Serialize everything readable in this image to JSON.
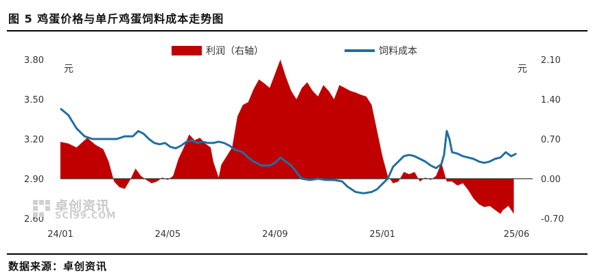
{
  "header": {
    "title": "图 5  鸡蛋价格与单斤鸡蛋饲料成本走势图"
  },
  "footer": {
    "source": "数据来源：卓创资讯"
  },
  "watermark": {
    "cn": "卓创资讯",
    "en": "SCI99.COM"
  },
  "colors": {
    "profit": "#c00000",
    "feed": "#1f6f9e"
  },
  "chart_data": {
    "type": "area",
    "legend_position": "top-center",
    "grid": false,
    "legend": [
      "利润（右轴）",
      "饲料成本"
    ],
    "left_unit": "元",
    "right_unit": "元",
    "left_axis": {
      "min": 2.6,
      "max": 3.8,
      "ticks": [
        "3.80",
        "3.50",
        "3.20",
        "2.90",
        "2.60"
      ]
    },
    "right_axis": {
      "min": -0.7,
      "max": 2.1,
      "ticks": [
        "2.10",
        "1.40",
        "0.70",
        "0.00",
        "-0.70"
      ]
    },
    "x_ticks": [
      "24/01",
      "24/05",
      "24/09",
      "25/01",
      "25/06"
    ],
    "x_tick_months": [
      0,
      4,
      8,
      12,
      17
    ],
    "x_range_months": [
      0,
      17.6
    ],
    "series": [
      {
        "name": "利润（右轴）",
        "axis": "right",
        "kind": "area",
        "points": [
          [
            0,
            0.65
          ],
          [
            0.3,
            0.62
          ],
          [
            0.6,
            0.55
          ],
          [
            1.0,
            0.72
          ],
          [
            1.3,
            0.6
          ],
          [
            1.6,
            0.52
          ],
          [
            1.8,
            0.3
          ],
          [
            2.0,
            -0.05
          ],
          [
            2.2,
            -0.15
          ],
          [
            2.4,
            -0.18
          ],
          [
            2.6,
            -0.02
          ],
          [
            2.8,
            0.18
          ],
          [
            3.0,
            0.05
          ],
          [
            3.2,
            -0.02
          ],
          [
            3.4,
            -0.08
          ],
          [
            3.6,
            -0.05
          ],
          [
            3.8,
            0.02
          ],
          [
            4.0,
            -0.02
          ],
          [
            4.2,
            0.05
          ],
          [
            4.4,
            0.35
          ],
          [
            4.6,
            0.55
          ],
          [
            4.8,
            0.78
          ],
          [
            5.0,
            0.68
          ],
          [
            5.2,
            0.72
          ],
          [
            5.4,
            0.62
          ],
          [
            5.6,
            0.55
          ],
          [
            5.7,
            0.3
          ],
          [
            5.9,
            0.02
          ],
          [
            6.0,
            0.25
          ],
          [
            6.2,
            0.4
          ],
          [
            6.4,
            0.55
          ],
          [
            6.6,
            1.1
          ],
          [
            6.8,
            1.3
          ],
          [
            7.0,
            1.35
          ],
          [
            7.2,
            1.58
          ],
          [
            7.4,
            1.75
          ],
          [
            7.6,
            1.68
          ],
          [
            7.8,
            1.6
          ],
          [
            8.0,
            1.85
          ],
          [
            8.2,
            2.1
          ],
          [
            8.4,
            1.8
          ],
          [
            8.6,
            1.55
          ],
          [
            8.8,
            1.4
          ],
          [
            9.0,
            1.6
          ],
          [
            9.2,
            1.7
          ],
          [
            9.4,
            1.55
          ],
          [
            9.6,
            1.45
          ],
          [
            9.8,
            1.65
          ],
          [
            10.0,
            1.55
          ],
          [
            10.2,
            1.4
          ],
          [
            10.4,
            1.65
          ],
          [
            10.6,
            1.6
          ],
          [
            10.8,
            1.55
          ],
          [
            11.0,
            1.52
          ],
          [
            11.2,
            1.48
          ],
          [
            11.4,
            1.45
          ],
          [
            11.6,
            1.3
          ],
          [
            11.8,
            0.85
          ],
          [
            12.0,
            0.4
          ],
          [
            12.2,
            0.05
          ],
          [
            12.4,
            -0.08
          ],
          [
            12.6,
            -0.05
          ],
          [
            12.8,
            0.12
          ],
          [
            13.0,
            0.08
          ],
          [
            13.2,
            0.12
          ],
          [
            13.4,
            -0.05
          ],
          [
            13.6,
            0.02
          ],
          [
            13.8,
            -0.02
          ],
          [
            14.0,
            0.05
          ],
          [
            14.2,
            0.28
          ],
          [
            14.4,
            -0.05
          ],
          [
            14.6,
            -0.05
          ],
          [
            14.8,
            -0.12
          ],
          [
            15.0,
            -0.08
          ],
          [
            15.2,
            -0.2
          ],
          [
            15.4,
            -0.35
          ],
          [
            15.6,
            -0.45
          ],
          [
            15.8,
            -0.5
          ],
          [
            16.0,
            -0.48
          ],
          [
            16.2,
            -0.55
          ],
          [
            16.4,
            -0.62
          ],
          [
            16.5,
            -0.55
          ],
          [
            16.7,
            -0.48
          ],
          [
            16.9,
            -0.62
          ]
        ]
      },
      {
        "name": "饲料成本",
        "axis": "left",
        "kind": "line",
        "points": [
          [
            0,
            3.43
          ],
          [
            0.3,
            3.38
          ],
          [
            0.6,
            3.28
          ],
          [
            0.9,
            3.22
          ],
          [
            1.2,
            3.2
          ],
          [
            1.5,
            3.2
          ],
          [
            1.8,
            3.2
          ],
          [
            2.1,
            3.2
          ],
          [
            2.4,
            3.22
          ],
          [
            2.7,
            3.22
          ],
          [
            2.9,
            3.26
          ],
          [
            3.1,
            3.24
          ],
          [
            3.3,
            3.2
          ],
          [
            3.5,
            3.17
          ],
          [
            3.7,
            3.16
          ],
          [
            3.9,
            3.17
          ],
          [
            4.1,
            3.14
          ],
          [
            4.3,
            3.13
          ],
          [
            4.5,
            3.15
          ],
          [
            4.7,
            3.18
          ],
          [
            4.9,
            3.19
          ],
          [
            5.1,
            3.17
          ],
          [
            5.3,
            3.18
          ],
          [
            5.5,
            3.17
          ],
          [
            5.7,
            3.17
          ],
          [
            5.9,
            3.18
          ],
          [
            6.1,
            3.17
          ],
          [
            6.3,
            3.15
          ],
          [
            6.5,
            3.12
          ],
          [
            6.8,
            3.1
          ],
          [
            7.0,
            3.06
          ],
          [
            7.2,
            3.03
          ],
          [
            7.5,
            3.0
          ],
          [
            7.8,
            3.0
          ],
          [
            8.0,
            3.02
          ],
          [
            8.2,
            3.06
          ],
          [
            8.4,
            3.03
          ],
          [
            8.6,
            3.0
          ],
          [
            8.8,
            2.95
          ],
          [
            9.0,
            2.9
          ],
          [
            9.3,
            2.89
          ],
          [
            9.6,
            2.9
          ],
          [
            9.9,
            2.89
          ],
          [
            10.2,
            2.89
          ],
          [
            10.5,
            2.88
          ],
          [
            10.7,
            2.84
          ],
          [
            11.0,
            2.8
          ],
          [
            11.3,
            2.79
          ],
          [
            11.6,
            2.8
          ],
          [
            11.8,
            2.82
          ],
          [
            12.0,
            2.86
          ],
          [
            12.2,
            2.9
          ],
          [
            12.4,
            2.99
          ],
          [
            12.6,
            3.03
          ],
          [
            12.8,
            3.07
          ],
          [
            13.0,
            3.08
          ],
          [
            13.2,
            3.07
          ],
          [
            13.4,
            3.05
          ],
          [
            13.6,
            3.03
          ],
          [
            13.8,
            3.0
          ],
          [
            14.0,
            2.98
          ],
          [
            14.2,
            3.01
          ],
          [
            14.3,
            3.08
          ],
          [
            14.4,
            3.26
          ],
          [
            14.5,
            3.2
          ],
          [
            14.6,
            3.1
          ],
          [
            14.8,
            3.09
          ],
          [
            15.0,
            3.07
          ],
          [
            15.2,
            3.06
          ],
          [
            15.4,
            3.05
          ],
          [
            15.6,
            3.03
          ],
          [
            15.8,
            3.02
          ],
          [
            16.0,
            3.03
          ],
          [
            16.2,
            3.05
          ],
          [
            16.4,
            3.06
          ],
          [
            16.6,
            3.1
          ],
          [
            16.8,
            3.07
          ],
          [
            17.0,
            3.09
          ]
        ]
      }
    ]
  }
}
